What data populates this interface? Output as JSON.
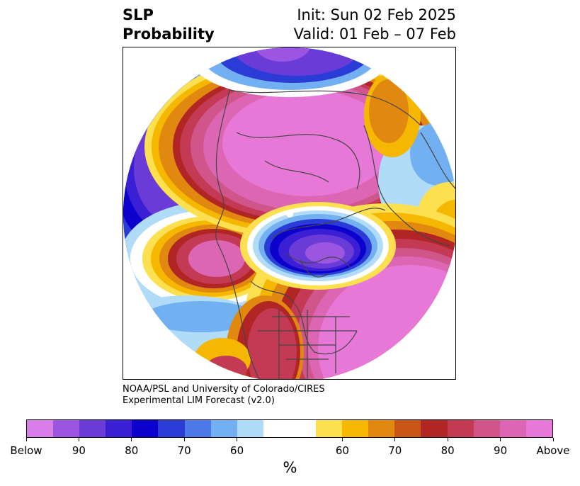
{
  "title": {
    "left_line1": "SLP",
    "left_line2": "Probability",
    "right_line1": "Init: Sun 02 Feb 2025",
    "right_line2": "Valid: 01 Feb – 07 Feb"
  },
  "credit": {
    "line1": "NOAA/PSL and University of Colorado/CIRES",
    "line2": "Experimental LIM Forecast (v2.0)"
  },
  "colorbar": {
    "colors": [
      "#d97ee8",
      "#9b55e0",
      "#6b3bd8",
      "#3a1fd4",
      "#0b00cc",
      "#2a3bd6",
      "#4d78e8",
      "#73b0f2",
      "#b0dcf8",
      "#ffffff",
      "#ffffff",
      "#fde050",
      "#f5b700",
      "#e08810",
      "#c95518",
      "#b22525",
      "#c43a55",
      "#d0558a",
      "#dc66b4",
      "#e878d8"
    ],
    "tick_labels": [
      "Below",
      "90",
      "80",
      "70",
      "60",
      "60",
      "70",
      "80",
      "90",
      "Above"
    ],
    "unit": "%"
  },
  "map": {
    "projection": "north polar stereographic",
    "palette": {
      "below_deep": "#9b55e0",
      "below_strong": "#3a1fd4",
      "below_mid": "#2a3bd6",
      "below_light": "#4d78e8",
      "below_pale": "#b0dcf8",
      "above_pale": "#fde050",
      "above_light": "#f5b700",
      "above_mid": "#e08810",
      "above_strong": "#b22525",
      "above_deep": "#c43a55",
      "above_max": "#e878d8",
      "coastline": "#444444"
    }
  }
}
